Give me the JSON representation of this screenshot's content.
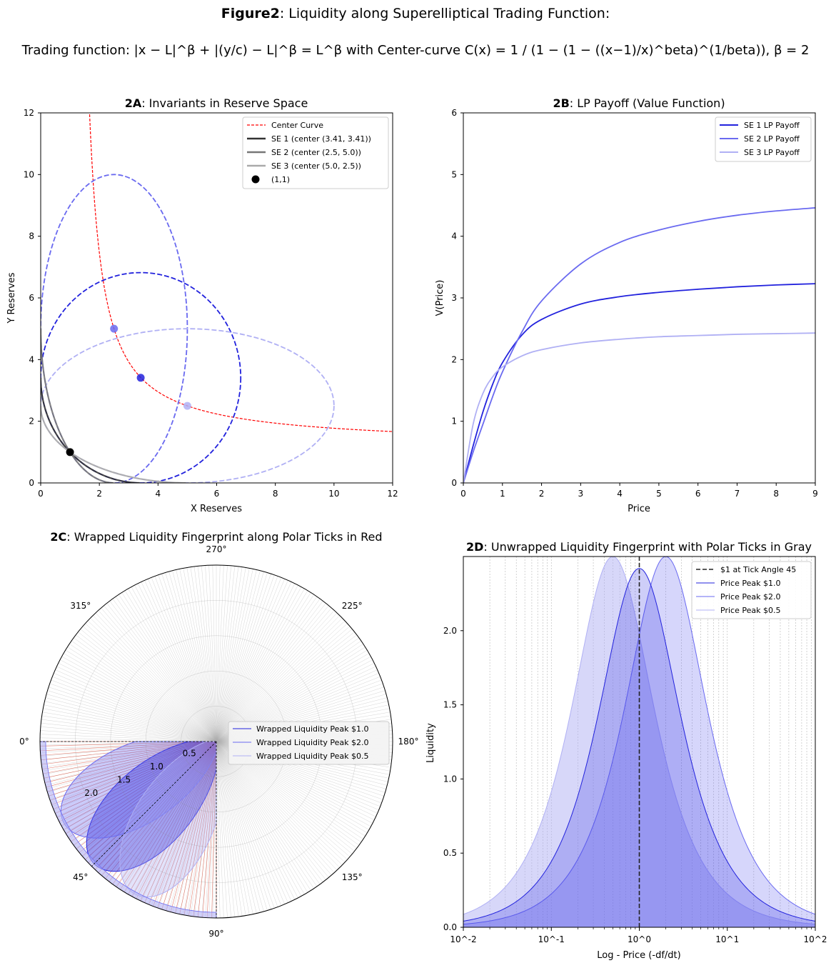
{
  "figure": {
    "title_bold": "Figure2",
    "title_rest": ": Liquidity along Superelliptical Trading Function:",
    "subtitle": "Trading function: |x − L|^β + |(y/c) − L|^β = L^β with Center-curve C(x) = 1 / (1 − (1 − ((x−1)/x)^beta)^(1/beta)), β = 2"
  },
  "colors": {
    "se1": "#2222dd",
    "se2": "#6a6af0",
    "se3": "#b0b0f4",
    "center": "#ff0000",
    "black": "#000000",
    "dark_gray": "#333333",
    "mid_gray": "#777777",
    "light_gray": "#aaaaaa",
    "red_tick": "#d9533f"
  },
  "chart_data": [
    {
      "id": "2A",
      "type": "line",
      "title_bold": "2A",
      "title_rest": ": Invariants in Reserve Space",
      "xlabel": "X Reserves",
      "ylabel": "Y Reserves",
      "xlim": [
        0,
        12
      ],
      "ylim": [
        0,
        12
      ],
      "xticks": [
        0,
        2,
        4,
        6,
        8,
        10,
        12
      ],
      "yticks": [
        0,
        2,
        4,
        6,
        8,
        10,
        12
      ],
      "legend_position": "top-right",
      "legend": [
        {
          "label": "Center Curve",
          "style": "dashed",
          "color": "#ff0000"
        },
        {
          "label": "SE 1 (center (3.41, 3.41))",
          "style": "solid",
          "color": "#333333"
        },
        {
          "label": "SE 2 (center (2.5, 5.0))",
          "style": "solid",
          "color": "#777777"
        },
        {
          "label": "SE 3 (center (5.0, 2.5))",
          "style": "solid",
          "color": "#aaaaaa"
        },
        {
          "label": "(1,1)",
          "style": "marker",
          "color": "#000000"
        }
      ],
      "ellipses": [
        {
          "name": "SE 1",
          "center": [
            3.41,
            3.41
          ],
          "radius": [
            3.41,
            3.41
          ],
          "color": "#2222dd"
        },
        {
          "name": "SE 2",
          "center": [
            2.5,
            5.0
          ],
          "radius": [
            2.5,
            5.0
          ],
          "color": "#6a6af0"
        },
        {
          "name": "SE 3",
          "center": [
            5.0,
            2.5
          ],
          "radius": [
            5.0,
            2.5
          ],
          "color": "#b0b0f4"
        }
      ],
      "centers": [
        {
          "x": 2.5,
          "y": 5.0,
          "color": "#6a6af0"
        },
        {
          "x": 3.41,
          "y": 3.41,
          "color": "#2222dd"
        },
        {
          "x": 5.0,
          "y": 2.5,
          "color": "#b0b0f4"
        }
      ],
      "point": {
        "x": 1,
        "y": 1,
        "label": "(1,1)"
      }
    },
    {
      "id": "2B",
      "type": "line",
      "title_bold": "2B",
      "title_rest": ": LP Payoff (Value Function)",
      "xlabel": "Price",
      "ylabel": "V(Price)",
      "xlim": [
        0,
        9
      ],
      "ylim": [
        0,
        6
      ],
      "xticks": [
        0,
        1,
        2,
        3,
        4,
        5,
        6,
        7,
        8,
        9
      ],
      "yticks": [
        0,
        1,
        2,
        3,
        4,
        5,
        6
      ],
      "legend_position": "top-right",
      "series": [
        {
          "name": "SE 1 LP Payoff",
          "color": "#2222dd",
          "x": [
            0,
            0.25,
            0.5,
            0.75,
            1,
            1.5,
            2,
            3,
            4,
            5,
            6,
            7,
            8,
            9
          ],
          "y": [
            0,
            0.6,
            1.15,
            1.6,
            1.95,
            2.4,
            2.65,
            2.9,
            3.02,
            3.09,
            3.14,
            3.18,
            3.21,
            3.23
          ]
        },
        {
          "name": "SE 2 LP Payoff",
          "color": "#6a6af0",
          "x": [
            0,
            0.25,
            0.5,
            0.75,
            1,
            1.5,
            2,
            3,
            4,
            5,
            6,
            7,
            8,
            9
          ],
          "y": [
            0,
            0.5,
            0.95,
            1.4,
            1.8,
            2.45,
            2.95,
            3.55,
            3.9,
            4.1,
            4.24,
            4.34,
            4.41,
            4.46
          ]
        },
        {
          "name": "SE 3 LP Payoff",
          "color": "#b0b0f4",
          "x": [
            0,
            0.25,
            0.5,
            0.75,
            1,
            1.5,
            2,
            3,
            4,
            5,
            6,
            7,
            8,
            9
          ],
          "y": [
            0,
            0.95,
            1.45,
            1.72,
            1.88,
            2.06,
            2.16,
            2.27,
            2.33,
            2.37,
            2.39,
            2.41,
            2.42,
            2.43
          ]
        }
      ]
    },
    {
      "id": "2C",
      "type": "polar",
      "title_bold": "2C",
      "title_rest": ": Wrapped Liquidity Fingerprint along Polar Ticks in Red",
      "angle_labels": [
        {
          "deg": 0,
          "label": "0°"
        },
        {
          "deg": 45,
          "label": "45°"
        },
        {
          "deg": 90,
          "label": "90°"
        },
        {
          "deg": 135,
          "label": "135°"
        },
        {
          "deg": 180,
          "label": "180°"
        },
        {
          "deg": 225,
          "label": "225°"
        },
        {
          "deg": 270,
          "label": "270°"
        },
        {
          "deg": 315,
          "label": "315°"
        }
      ],
      "radial_labels": [
        "0.5",
        "1.0",
        "1.5",
        "2.0"
      ],
      "radial_values": [
        0.5,
        1.0,
        1.5,
        2.0
      ],
      "rmax": 2.5,
      "legend_position": "center-right",
      "legend": [
        {
          "label": "Wrapped Liquidity Peak $1.0",
          "color": "#2222dd"
        },
        {
          "label": "Wrapped Liquidity Peak $2.0",
          "color": "#6a6af0"
        },
        {
          "label": "Wrapped Liquidity Peak $0.5",
          "color": "#b0b0f4"
        }
      ]
    },
    {
      "id": "2D",
      "type": "area",
      "title_bold": "2D",
      "title_rest": ": Unwrapped Liquidity Fingerprint with Polar Ticks in Gray",
      "xlabel": "Log - Price (-df/dt)",
      "ylabel": "Liquidity",
      "xscale": "log",
      "xlim": [
        0.01,
        100
      ],
      "ylim": [
        0,
        2.5
      ],
      "xticks": [
        "10^-2",
        "10^-1",
        "10^0",
        "10^1",
        "10^2"
      ],
      "xtick_values": [
        0.01,
        0.1,
        1,
        10,
        100
      ],
      "yticks": [
        0.0,
        0.5,
        1.0,
        1.5,
        2.0
      ],
      "ytick_labels": [
        "0.0",
        "0.5",
        "1.0",
        "1.5",
        "2.0"
      ],
      "legend_position": "top-right",
      "vline": {
        "x": 1,
        "label": "$1 at Tick Angle 45"
      },
      "series": [
        {
          "name": "Price Peak $1.0",
          "peak_price": 1.0,
          "peak_value": 2.42,
          "color": "#2222dd"
        },
        {
          "name": "Price Peak $2.0",
          "peak_price": 2.0,
          "peak_value": 2.5,
          "color": "#6a6af0"
        },
        {
          "name": "Price Peak $0.5",
          "peak_price": 0.5,
          "peak_value": 2.5,
          "color": "#b0b0f4"
        }
      ]
    }
  ]
}
